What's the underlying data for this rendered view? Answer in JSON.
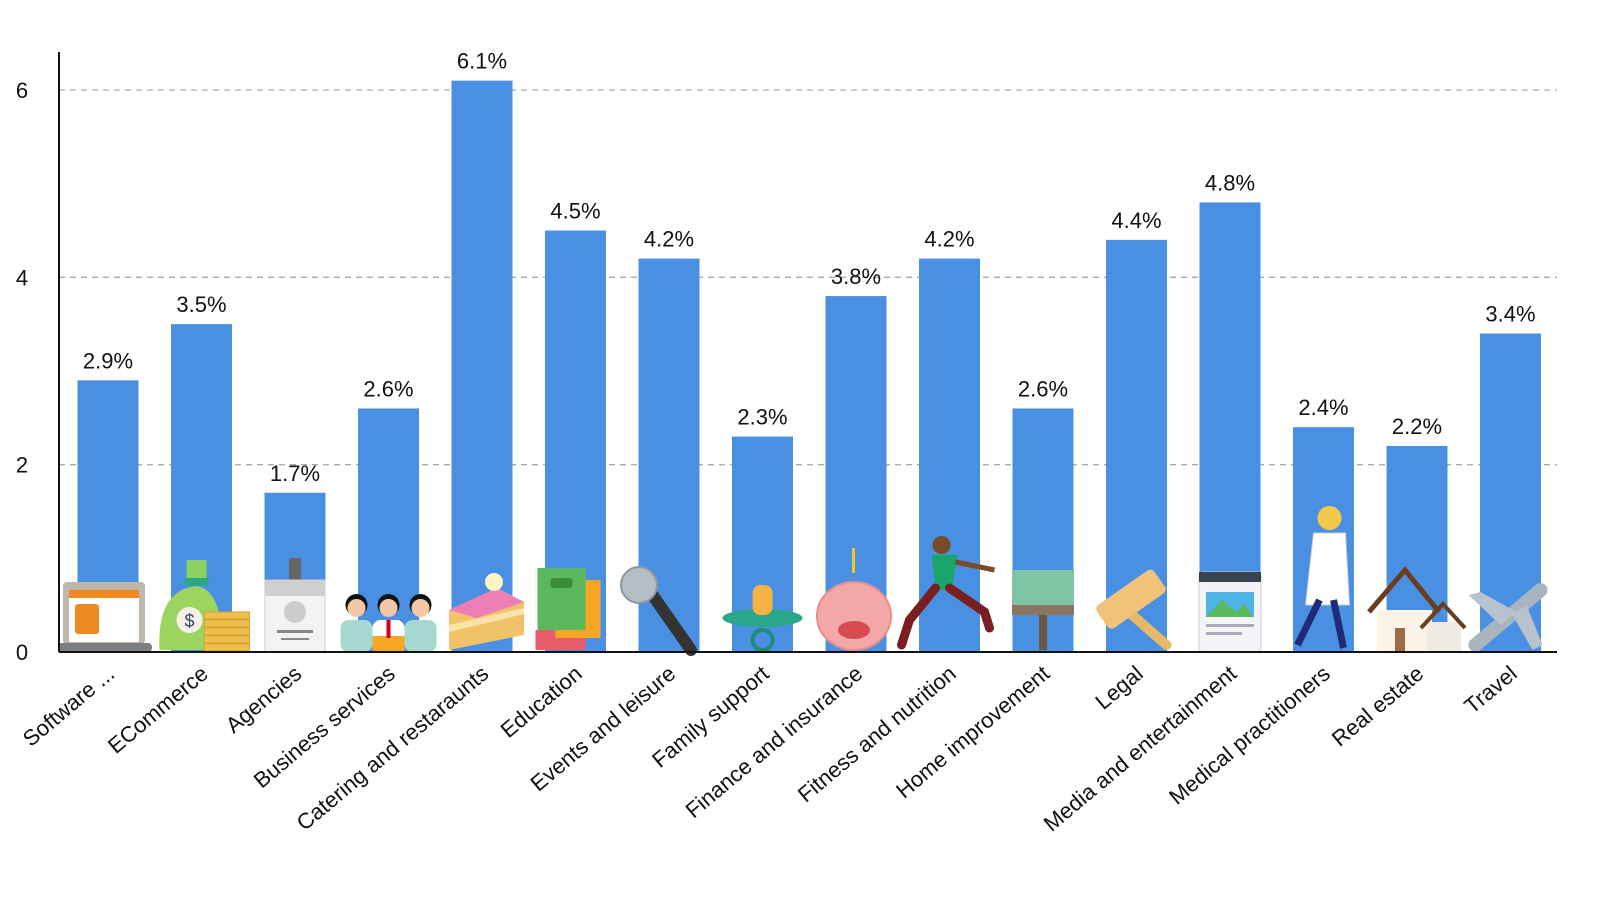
{
  "chart_data": {
    "type": "bar",
    "title": "",
    "xlabel": "",
    "ylabel": "",
    "ylim": [
      0,
      6.2
    ],
    "yticks": [
      0,
      2,
      4,
      6
    ],
    "grid": "horizontal dashed at 2, 4, 6",
    "bar_color": "#4a90e2",
    "categories": [
      "Software ...",
      "ECommerce",
      "Agencies",
      "Business services",
      "Catering and restaraunts",
      "Education",
      "Events and leisure",
      "Family support",
      "Finance and insurance",
      "Fitness and nutrition",
      "Home improvement",
      "Legal",
      "Media and entertainment",
      "Medical practitioners",
      "Real estate",
      "Travel"
    ],
    "values": [
      2.9,
      3.5,
      1.7,
      2.6,
      6.1,
      4.5,
      4.2,
      2.3,
      3.8,
      4.2,
      2.6,
      4.4,
      4.8,
      2.4,
      2.2,
      3.4
    ],
    "data_labels": [
      "2.9%",
      "3.5%",
      "1.7%",
      "2.6%",
      "6.1%",
      "4.5%",
      "4.2%",
      "2.3%",
      "3.8%",
      "4.2%",
      "2.6%",
      "4.4%",
      "4.8%",
      "2.4%",
      "2.2%",
      "3.4%"
    ],
    "icons": [
      "laptop-icon",
      "money-bag-icon",
      "id-badge-icon",
      "team-icon",
      "cake-icon",
      "books-icon",
      "microphone-icon",
      "pacifier-icon",
      "piggy-bank-icon",
      "runner-icon",
      "paint-roller-icon",
      "gavel-icon",
      "media-page-icon",
      "doctor-icon",
      "house-icon",
      "airplane-icon"
    ]
  }
}
